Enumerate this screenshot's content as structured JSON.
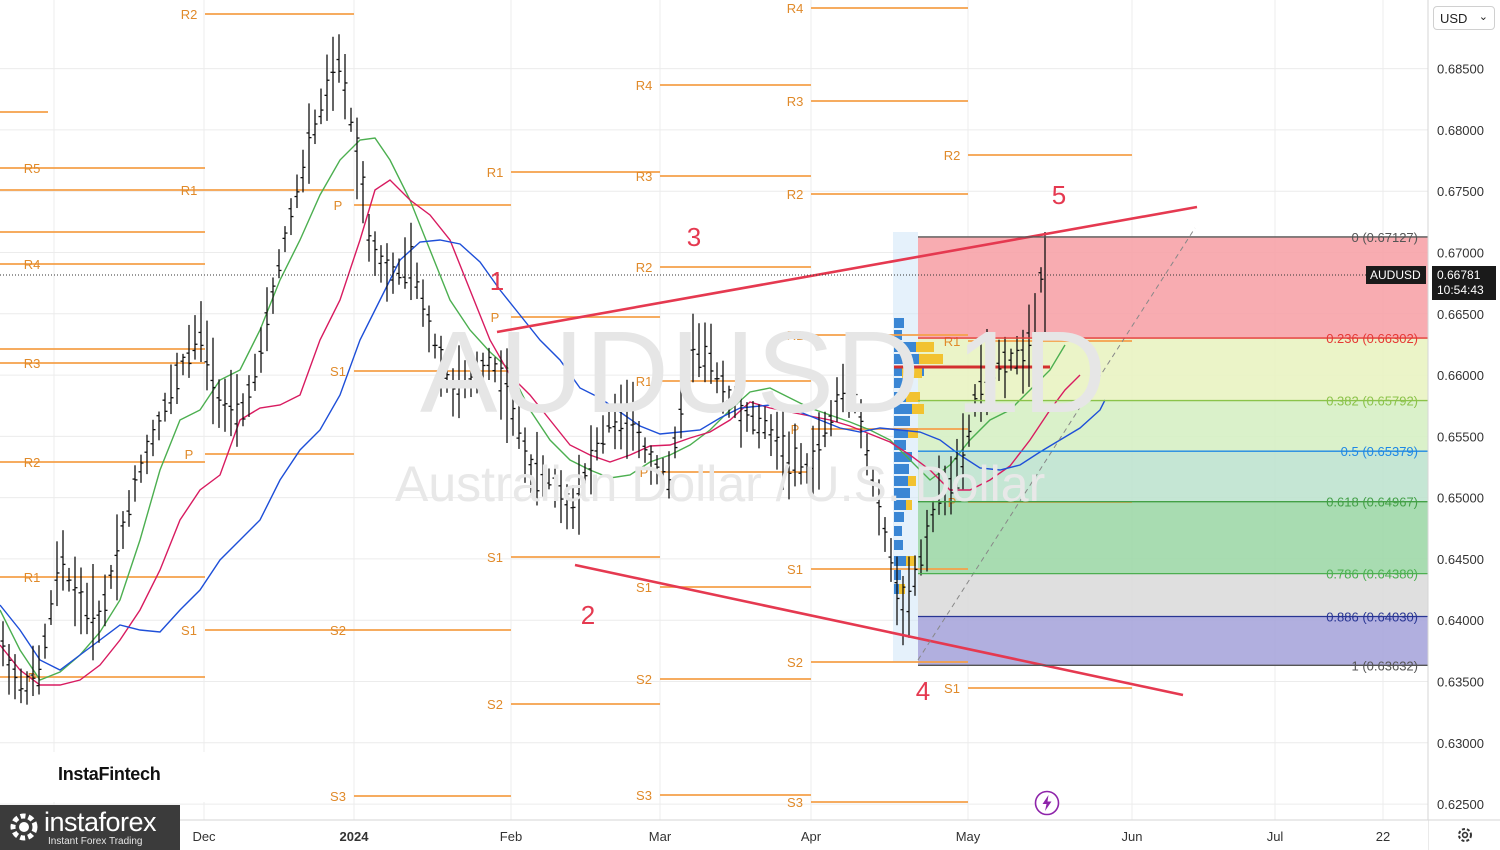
{
  "app": {
    "symbol_watermark": "AUDUSD 1D",
    "symbol_name_watermark": "Australian Dollar / U.S. Dollar",
    "currency_select": "USD",
    "symbol_tag": "AUDUSD",
    "last_price": "0.66781",
    "countdown": "10:54:43",
    "brand_small": "InstaFintech",
    "brand_name": "instaforex",
    "brand_tagline": "Instant Forex Trading"
  },
  "chart_data": {
    "type": "candlestick",
    "price_axis": {
      "ticks": [
        "0.68500",
        "0.68000",
        "0.67500",
        "0.67000",
        "0.66500",
        "0.66000",
        "0.65500",
        "0.65000",
        "0.64500",
        "0.64000",
        "0.63500",
        "0.63000",
        "0.62500"
      ],
      "range": [
        0.6237,
        0.6906
      ]
    },
    "time_axis": {
      "labels": [
        "Dec",
        "2024",
        "Feb",
        "Mar",
        "Apr",
        "May",
        "Jun",
        "Jul",
        "22"
      ]
    },
    "wave_labels": [
      "1",
      "2",
      "3",
      "4",
      "5"
    ],
    "fibonacci": [
      {
        "label": "0 (0.67127)",
        "value": 0.67127,
        "color": "#555555"
      },
      {
        "label": "0.236 (0.66302)",
        "value": 0.66302,
        "color": "#e53935"
      },
      {
        "label": "0.382 (0.65792)",
        "value": 0.65792,
        "color": "#8bc34a"
      },
      {
        "label": "0.5 (0.65379)",
        "value": 0.65379,
        "color": "#1e88e5"
      },
      {
        "label": "0.618 (0.64967)",
        "value": 0.64967,
        "color": "#43a047"
      },
      {
        "label": "0.786 (0.64380)",
        "value": 0.6438,
        "color": "#4caf50"
      },
      {
        "label": "0.886 (0.64030)",
        "value": 0.6403,
        "color": "#283593"
      },
      {
        "label": "1 (0.63632)",
        "value": 0.63632,
        "color": "#555555"
      }
    ],
    "pivot_labels": [
      "R5",
      "R4",
      "R3",
      "R2",
      "R1",
      "P",
      "S1",
      "S2",
      "S3"
    ],
    "colors": {
      "pivot": "#f5a04a",
      "pivot_label": "#e08a2a",
      "trendline": "#e53950",
      "ma_fast": "#4caf50",
      "ma_mid": "#d81b60",
      "ma_slow": "#1e4fd8",
      "candle": "#111111",
      "grid": "#ececec"
    }
  }
}
